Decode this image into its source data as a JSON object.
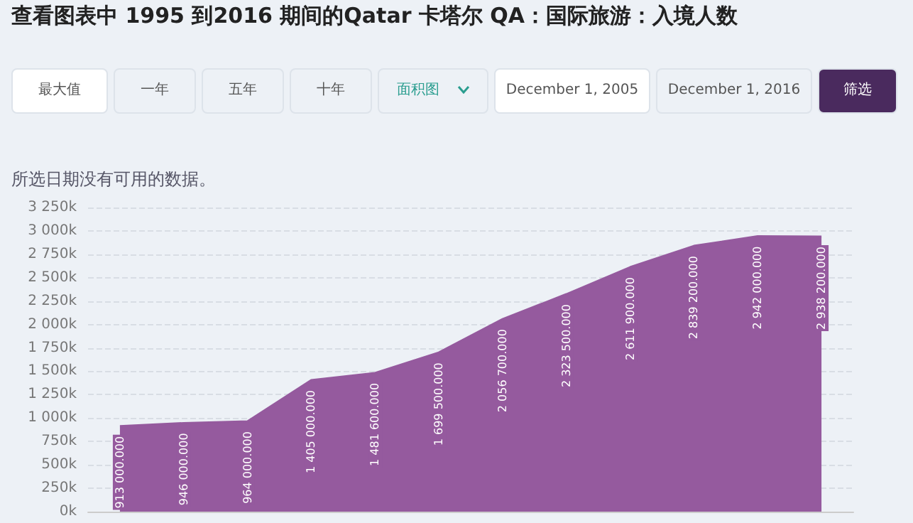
{
  "chart_data": {
    "type": "area",
    "title": "查看图表中 1995 到2016 期间的Qatar 卡塔尔 QA：国际旅游：入境人数",
    "annotations": [
      "最大值",
      "一年",
      "五年",
      "十年",
      "面积图",
      "December 1, 2005",
      "December 1, 2016",
      "筛选",
      "所选日期没有可用的数据。"
    ],
    "categories": [
      null,
      null,
      null,
      null,
      null,
      null,
      null,
      null,
      null,
      null,
      null,
      null
    ],
    "series": [
      {
        "color": "#955a9e",
        "values": [
          913000,
          946000,
          964000,
          1405000,
          1481600,
          1699500,
          2056700,
          2323500,
          2611900,
          2839200,
          2942000,
          2938200
        ],
        "value_labels": [
          "913 000.000",
          "946 000.000",
          "964 000.000",
          "1 405 000.000",
          "1 481 600.000",
          "1 699 500.000",
          "2 056 700.000",
          "2 323 500.000",
          "2 611 900.000",
          "2 839 200.000",
          "2 942 000.000",
          "2 938 200.000"
        ]
      }
    ],
    "ylim": [
      0,
      3250000
    ],
    "yticks": [
      {
        "value": 0,
        "label": "0k"
      },
      {
        "value": 250000,
        "label": "250k"
      },
      {
        "value": 500000,
        "label": "500k"
      },
      {
        "value": 750000,
        "label": "750k"
      },
      {
        "value": 1000000,
        "label": "1 000k"
      },
      {
        "value": 1250000,
        "label": "1 250k"
      },
      {
        "value": 1500000,
        "label": "1 500k"
      },
      {
        "value": 1750000,
        "label": "1 750k"
      },
      {
        "value": 2000000,
        "label": "2 000k"
      },
      {
        "value": 2250000,
        "label": "2 250k"
      },
      {
        "value": 2500000,
        "label": "2 500k"
      },
      {
        "value": 2750000,
        "label": "2 750k"
      },
      {
        "value": 3000000,
        "label": "3 000k"
      },
      {
        "value": 3250000,
        "label": "3 250k"
      }
    ],
    "grid": "y",
    "tick_labels": "y"
  }
}
